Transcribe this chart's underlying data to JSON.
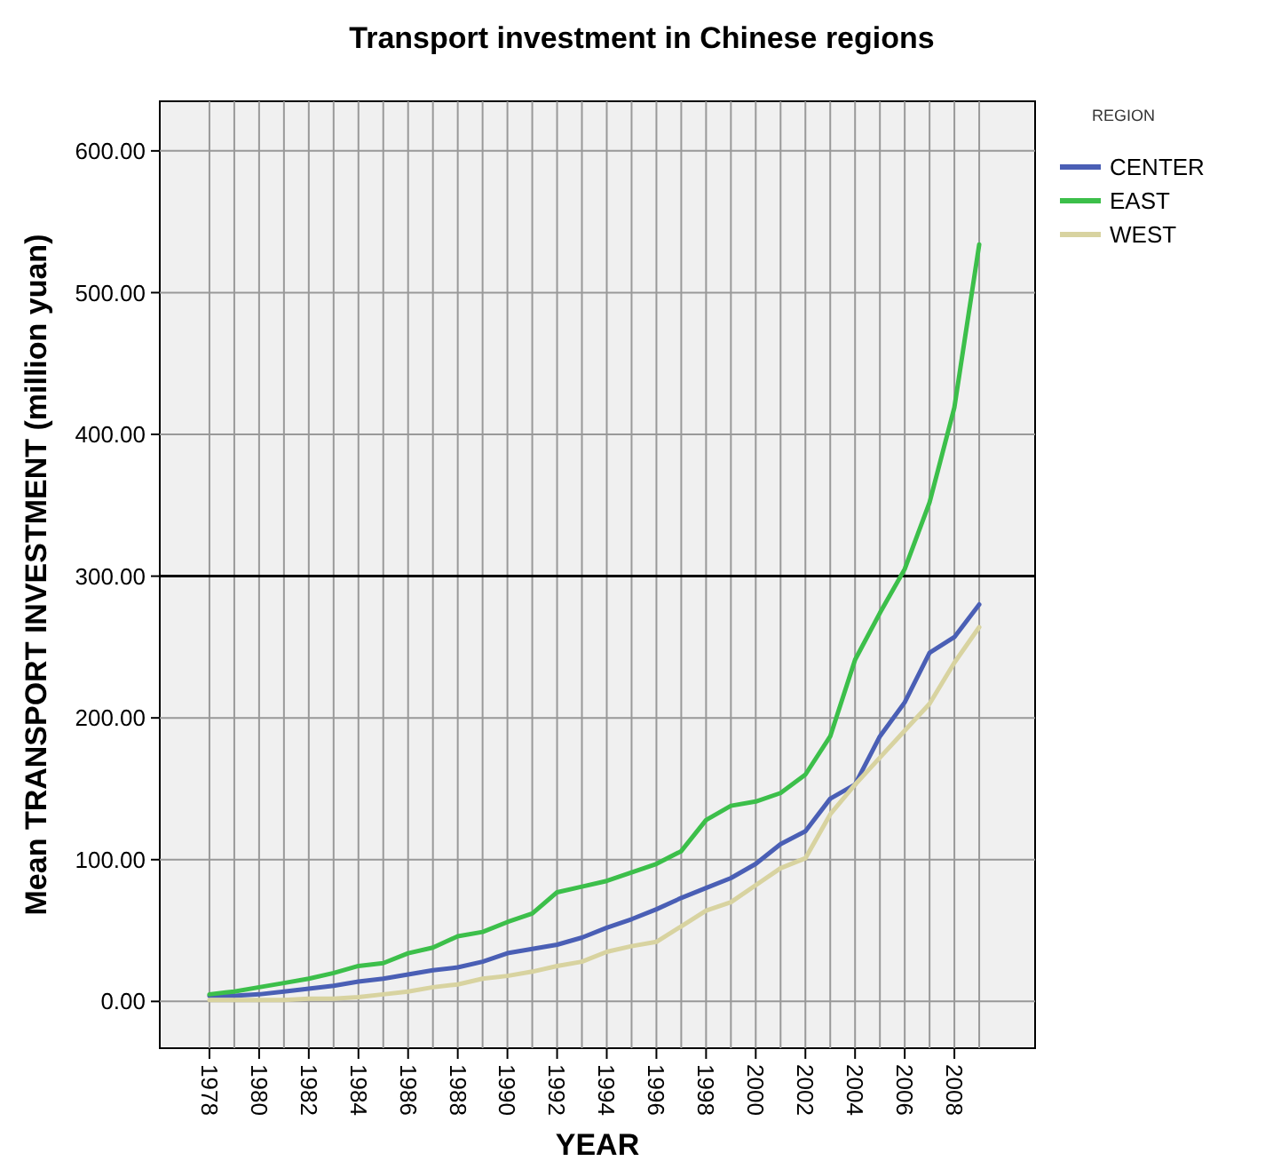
{
  "chart_data": {
    "type": "line",
    "title": "Transport investment in Chinese regions",
    "xlabel": "YEAR",
    "ylabel": "Mean TRANSPORT INVESTMENT (million yuan)",
    "legend_title": "REGION",
    "legend": "right",
    "grid": true,
    "line_style": "solid",
    "marker": "none",
    "x": [
      1978,
      1979,
      1980,
      1981,
      1982,
      1983,
      1984,
      1985,
      1986,
      1987,
      1988,
      1989,
      1990,
      1991,
      1992,
      1993,
      1994,
      1995,
      1996,
      1997,
      1998,
      1999,
      2000,
      2001,
      2002,
      2003,
      2004,
      2005,
      2006,
      2007,
      2008,
      2009
    ],
    "xlim": [
      1976,
      2011.25
    ],
    "xticks": [
      1978,
      1980,
      1982,
      1984,
      1986,
      1988,
      1990,
      1992,
      1994,
      1996,
      1998,
      2000,
      2002,
      2004,
      2006,
      2008
    ],
    "ylim": [
      -33,
      635
    ],
    "yticks": [
      {
        "value": 0,
        "label": "0.00"
      },
      {
        "value": 100,
        "label": "100.00"
      },
      {
        "value": 200,
        "label": "200.00"
      },
      {
        "value": 300,
        "label": "300.00"
      },
      {
        "value": 400,
        "label": "400.00"
      },
      {
        "value": 500,
        "label": "500.00"
      },
      {
        "value": 600,
        "label": "600.00"
      }
    ],
    "ref_lines": [
      {
        "axis": "y",
        "value": 300,
        "color": "#000000"
      }
    ],
    "series": [
      {
        "name": "CENTER",
        "color": "#4a5fb5",
        "values": [
          4,
          4,
          5,
          7,
          9,
          11,
          14,
          16,
          19,
          22,
          24,
          28,
          34,
          37,
          40,
          45,
          52,
          58,
          65,
          73,
          80,
          87,
          97,
          111,
          120,
          143,
          153,
          187,
          211,
          246,
          257,
          280
        ]
      },
      {
        "name": "EAST",
        "color": "#3cbf4a",
        "values": [
          5,
          7,
          10,
          13,
          16,
          20,
          25,
          27,
          34,
          38,
          46,
          49,
          56,
          62,
          77,
          81,
          85,
          91,
          97,
          106,
          128,
          138,
          141,
          147,
          160,
          187,
          241,
          274,
          305,
          352,
          419,
          534
        ]
      },
      {
        "name": "WEST",
        "color": "#d8d3a0",
        "values": [
          1,
          1,
          1,
          1,
          2,
          2,
          3,
          5,
          7,
          10,
          12,
          16,
          18,
          21,
          25,
          28,
          35,
          39,
          42,
          53,
          64,
          70,
          82,
          94,
          101,
          132,
          153,
          172,
          191,
          210,
          239,
          264
        ]
      }
    ]
  }
}
